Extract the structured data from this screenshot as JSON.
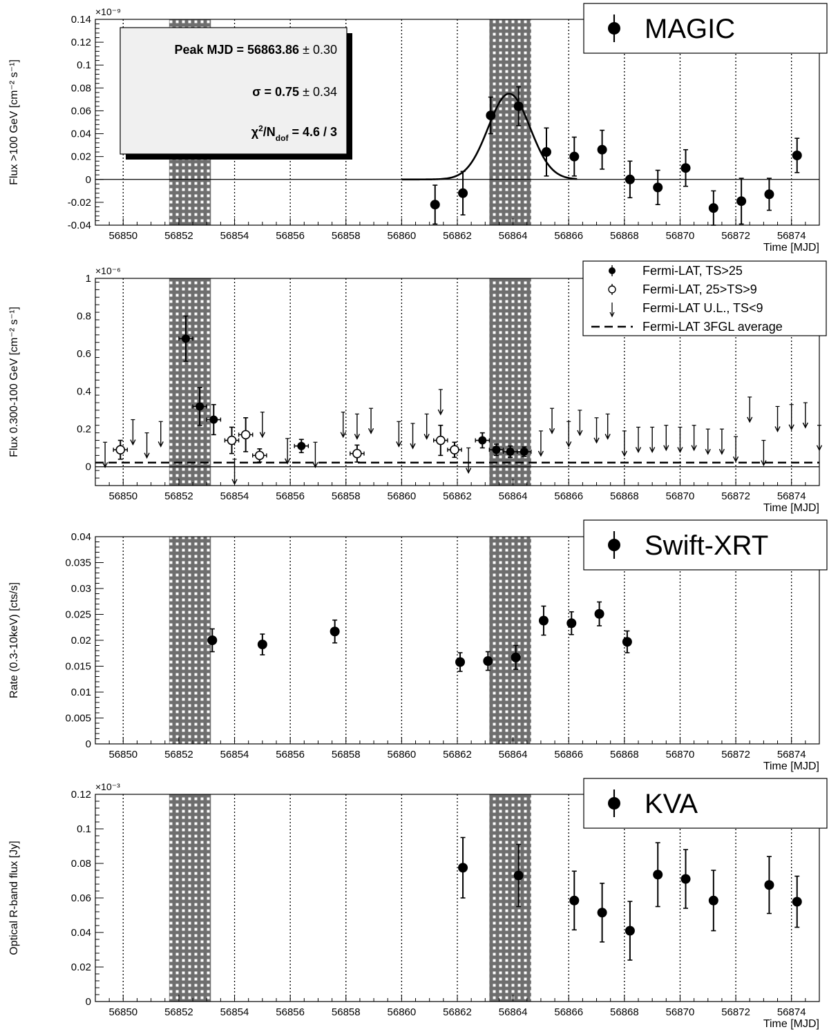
{
  "chart_data": [
    {
      "type": "scatter",
      "title": "MAGIC",
      "ylabel": "Flux  >100 GeV [cm⁻² s⁻¹]",
      "xlabel": "Time [MJD]",
      "exponent": "×10⁻⁹",
      "xlim": [
        56849.0,
        56875.0
      ],
      "ylim": [
        -0.04,
        0.14
      ],
      "xticks": [
        56850,
        56852,
        56854,
        56856,
        56858,
        56860,
        56862,
        56864,
        56866,
        56868,
        56870,
        56872,
        56874
      ],
      "xtick_labels": [
        "56850",
        "56852",
        "56854",
        "56856",
        "56858",
        "56860",
        "56862",
        "56864",
        "56866",
        "56868",
        "56870",
        "56872",
        "56874"
      ],
      "yticks": [
        -0.04,
        -0.02,
        0,
        0.02,
        0.04,
        0.06,
        0.08,
        0.1,
        0.12,
        0.14
      ],
      "ytick_labels": [
        "-0.04",
        "-0.02",
        "0",
        "0.02",
        "0.04",
        "0.06",
        "0.08",
        "0.1",
        "0.12",
        "0.14"
      ],
      "legend": [
        {
          "marker": "filled",
          "label": "MAGIC"
        }
      ],
      "fit": {
        "peak": 56863.86,
        "sigma": 0.75,
        "amplitude": 0.075,
        "range": [
          56860.0,
          56866.3
        ],
        "box_lines": [
          {
            "label": "Peak MJD = 56863.86",
            "err": " ± 0.30"
          },
          {
            "label": "σ = 0.75",
            "err": " ± 0.34"
          },
          {
            "chi": "χ",
            "chi_exp": "2",
            "slash": "/N",
            "dof": "dof",
            "value": " = 4.6 / 3"
          }
        ]
      },
      "series": [
        {
          "name": "MAGIC",
          "marker": "filled",
          "points": [
            {
              "x": 56861.2,
              "y": -0.022,
              "err": 0.017
            },
            {
              "x": 56862.2,
              "y": -0.012,
              "err": 0.019
            },
            {
              "x": 56863.2,
              "y": 0.056,
              "err": 0.016
            },
            {
              "x": 56864.2,
              "y": 0.064,
              "err": 0.017
            },
            {
              "x": 56865.2,
              "y": 0.024,
              "err": 0.021
            },
            {
              "x": 56866.2,
              "y": 0.02,
              "err": 0.017
            },
            {
              "x": 56867.2,
              "y": 0.026,
              "err": 0.017
            },
            {
              "x": 56868.2,
              "y": 0.0,
              "err": 0.016
            },
            {
              "x": 56869.2,
              "y": -0.007,
              "err": 0.015
            },
            {
              "x": 56870.2,
              "y": 0.01,
              "err": 0.016
            },
            {
              "x": 56871.2,
              "y": -0.025,
              "err": 0.015
            },
            {
              "x": 56872.2,
              "y": -0.019,
              "err": 0.02
            },
            {
              "x": 56873.2,
              "y": -0.013,
              "err": 0.014
            },
            {
              "x": 56874.2,
              "y": 0.021,
              "err": 0.015
            }
          ]
        }
      ]
    },
    {
      "type": "scatter",
      "ylabel": "Flux  0.300-100 GeV [cm⁻² s⁻¹]",
      "xlabel": "Time [MJD]",
      "exponent": "×10⁻⁶",
      "xlim": [
        56849.0,
        56875.0
      ],
      "ylim": [
        -0.1,
        1.0
      ],
      "xticks": [
        56850,
        56852,
        56854,
        56856,
        56858,
        56860,
        56862,
        56864,
        56866,
        56868,
        56870,
        56872,
        56874
      ],
      "xtick_labels": [
        "56850",
        "56852",
        "56854",
        "56856",
        "56858",
        "56860",
        "56862",
        "56864",
        "56866",
        "56868",
        "56870",
        "56872",
        "56874"
      ],
      "yticks": [
        0,
        0.2,
        0.4,
        0.6,
        0.8,
        1
      ],
      "ytick_labels": [
        "0",
        "0.2",
        "0.4",
        "0.6",
        "0.8",
        "1"
      ],
      "average": 0.022,
      "legend": [
        {
          "marker": "filled",
          "label": "Fermi-LAT, TS>25"
        },
        {
          "marker": "open",
          "label": "Fermi-LAT, 25>TS>9"
        },
        {
          "marker": "arrow",
          "label": "Fermi-LAT U.L., TS<9"
        },
        {
          "marker": "dashed",
          "label": "Fermi-LAT 3FGL average"
        }
      ],
      "series": [
        {
          "name": "Fermi-LAT, TS>25",
          "marker": "filled",
          "points": [
            {
              "x": 56852.25,
              "y": 0.68,
              "err": 0.12,
              "xerr": 0.25
            },
            {
              "x": 56852.75,
              "y": 0.32,
              "err": 0.1,
              "xerr": 0.25
            },
            {
              "x": 56853.25,
              "y": 0.25,
              "err": 0.08,
              "xerr": 0.25
            },
            {
              "x": 56856.4,
              "y": 0.11,
              "err": 0.035,
              "xerr": 0.25
            },
            {
              "x": 56862.9,
              "y": 0.14,
              "err": 0.04,
              "xerr": 0.25
            },
            {
              "x": 56863.4,
              "y": 0.09,
              "err": 0.03,
              "xerr": 0.25
            },
            {
              "x": 56863.9,
              "y": 0.08,
              "err": 0.03,
              "xerr": 0.25
            },
            {
              "x": 56864.4,
              "y": 0.08,
              "err": 0.025,
              "xerr": 0.25
            }
          ]
        },
        {
          "name": "Fermi-LAT, 25>TS>9",
          "marker": "open",
          "points": [
            {
              "x": 56849.9,
              "y": 0.09,
              "err": 0.05,
              "xerr": 0.25
            },
            {
              "x": 56853.9,
              "y": 0.14,
              "err": 0.07,
              "xerr": 0.25
            },
            {
              "x": 56854.4,
              "y": 0.17,
              "err": 0.09,
              "xerr": 0.25
            },
            {
              "x": 56854.9,
              "y": 0.06,
              "err": 0.035,
              "xerr": 0.25
            },
            {
              "x": 56858.4,
              "y": 0.07,
              "err": 0.045,
              "xerr": 0.25
            },
            {
              "x": 56861.4,
              "y": 0.14,
              "err": 0.08,
              "xerr": 0.25
            },
            {
              "x": 56861.9,
              "y": 0.09,
              "err": 0.04,
              "xerr": 0.25
            }
          ]
        },
        {
          "name": "Fermi-LAT U.L., TS<9",
          "marker": "arrow",
          "points": [
            {
              "x": 56849.35,
              "y": 0.13
            },
            {
              "x": 56850.35,
              "y": 0.25
            },
            {
              "x": 56850.85,
              "y": 0.18
            },
            {
              "x": 56851.35,
              "y": 0.24
            },
            {
              "x": 56854.0,
              "y": 0.04
            },
            {
              "x": 56855.0,
              "y": 0.29
            },
            {
              "x": 56855.9,
              "y": 0.15
            },
            {
              "x": 56856.9,
              "y": 0.13
            },
            {
              "x": 56857.9,
              "y": 0.29
            },
            {
              "x": 56858.4,
              "y": 0.28
            },
            {
              "x": 56858.9,
              "y": 0.31
            },
            {
              "x": 56859.9,
              "y": 0.24
            },
            {
              "x": 56860.4,
              "y": 0.23
            },
            {
              "x": 56860.9,
              "y": 0.28
            },
            {
              "x": 56861.4,
              "y": 0.41
            },
            {
              "x": 56862.4,
              "y": 0.1
            },
            {
              "x": 56865.0,
              "y": 0.19
            },
            {
              "x": 56865.4,
              "y": 0.31
            },
            {
              "x": 56866.0,
              "y": 0.24
            },
            {
              "x": 56866.4,
              "y": 0.3
            },
            {
              "x": 56867.0,
              "y": 0.26
            },
            {
              "x": 56867.4,
              "y": 0.28
            },
            {
              "x": 56868.0,
              "y": 0.19
            },
            {
              "x": 56868.5,
              "y": 0.21
            },
            {
              "x": 56869.0,
              "y": 0.21
            },
            {
              "x": 56869.5,
              "y": 0.22
            },
            {
              "x": 56870.0,
              "y": 0.21
            },
            {
              "x": 56870.5,
              "y": 0.22
            },
            {
              "x": 56871.0,
              "y": 0.2
            },
            {
              "x": 56871.5,
              "y": 0.2
            },
            {
              "x": 56872.0,
              "y": 0.16
            },
            {
              "x": 56872.5,
              "y": 0.37
            },
            {
              "x": 56873.0,
              "y": 0.14
            },
            {
              "x": 56873.5,
              "y": 0.32
            },
            {
              "x": 56874.0,
              "y": 0.33
            },
            {
              "x": 56874.5,
              "y": 0.34
            },
            {
              "x": 56875.0,
              "y": 0.22
            }
          ]
        }
      ]
    },
    {
      "type": "scatter",
      "title": "Swift-XRT",
      "ylabel": "Rate (0.3-10keV) [cts/s]",
      "xlabel": "Time [MJD]",
      "xlim": [
        56849.0,
        56875.0
      ],
      "ylim": [
        0,
        0.04
      ],
      "xticks": [
        56850,
        56852,
        56854,
        56856,
        56858,
        56860,
        56862,
        56864,
        56866,
        56868,
        56870,
        56872,
        56874
      ],
      "xtick_labels": [
        "56850",
        "56852",
        "56854",
        "56856",
        "56858",
        "56860",
        "56862",
        "56864",
        "56866",
        "56868",
        "56870",
        "56872",
        "56874"
      ],
      "yticks": [
        0,
        0.005,
        0.01,
        0.015,
        0.02,
        0.025,
        0.03,
        0.035,
        0.04
      ],
      "ytick_labels": [
        "0",
        "0.005",
        "0.01",
        "0.015",
        "0.02",
        "0.025",
        "0.03",
        "0.035",
        "0.04"
      ],
      "legend": [
        {
          "marker": "filled",
          "label": "Swift-XRT"
        }
      ],
      "series": [
        {
          "name": "Swift-XRT",
          "marker": "filled",
          "points": [
            {
              "x": 56853.2,
              "y": 0.02,
              "err": 0.0022
            },
            {
              "x": 56855.0,
              "y": 0.0192,
              "err": 0.002
            },
            {
              "x": 56857.6,
              "y": 0.0217,
              "err": 0.0022
            },
            {
              "x": 56862.1,
              "y": 0.0158,
              "err": 0.0018
            },
            {
              "x": 56863.1,
              "y": 0.016,
              "err": 0.0018
            },
            {
              "x": 56864.1,
              "y": 0.0167,
              "err": 0.0023
            },
            {
              "x": 56865.1,
              "y": 0.0238,
              "err": 0.0028
            },
            {
              "x": 56866.1,
              "y": 0.0233,
              "err": 0.0022
            },
            {
              "x": 56867.1,
              "y": 0.0251,
              "err": 0.0023
            },
            {
              "x": 56868.1,
              "y": 0.0197,
              "err": 0.0021
            }
          ]
        }
      ]
    },
    {
      "type": "scatter",
      "title": "KVA",
      "ylabel": "Optical R-band flux [Jy]",
      "xlabel": "Time [MJD]",
      "exponent": "×10⁻³",
      "xlim": [
        56849.0,
        56875.0
      ],
      "ylim": [
        0,
        0.12
      ],
      "xticks": [
        56850,
        56852,
        56854,
        56856,
        56858,
        56860,
        56862,
        56864,
        56866,
        56868,
        56870,
        56872,
        56874
      ],
      "xtick_labels": [
        "56850",
        "56852",
        "56854",
        "56856",
        "56858",
        "56860",
        "56862",
        "56864",
        "56866",
        "56868",
        "56870",
        "56872",
        "56874"
      ],
      "yticks": [
        0,
        0.02,
        0.04,
        0.06,
        0.08,
        0.1,
        0.12
      ],
      "ytick_labels": [
        "0",
        "0.02",
        "0.04",
        "0.06",
        "0.08",
        "0.1",
        "0.12"
      ],
      "legend": [
        {
          "marker": "filled",
          "label": "KVA"
        }
      ],
      "series": [
        {
          "name": "KVA",
          "marker": "filled",
          "points": [
            {
              "x": 56862.2,
              "y": 0.0775,
              "err": 0.0175
            },
            {
              "x": 56864.2,
              "y": 0.073,
              "err": 0.018
            },
            {
              "x": 56866.2,
              "y": 0.0585,
              "err": 0.017
            },
            {
              "x": 56867.2,
              "y": 0.0515,
              "err": 0.017
            },
            {
              "x": 56868.2,
              "y": 0.041,
              "err": 0.017
            },
            {
              "x": 56869.2,
              "y": 0.0735,
              "err": 0.0185
            },
            {
              "x": 56870.2,
              "y": 0.071,
              "err": 0.017
            },
            {
              "x": 56871.2,
              "y": 0.0585,
              "err": 0.0175
            },
            {
              "x": 56873.2,
              "y": 0.0675,
              "err": 0.0165
            },
            {
              "x": 56874.2,
              "y": 0.0578,
              "err": 0.0148
            }
          ]
        }
      ]
    }
  ],
  "shaded_intervals": [
    [
      56851.65,
      56853.15
    ],
    [
      56863.15,
      56864.65
    ]
  ],
  "dotted_lines_x": [
    56850,
    56854,
    56856,
    56858,
    56860,
    56862,
    56866,
    56868,
    56870,
    56872,
    56874
  ],
  "colors": {
    "band": "#6e6e6e",
    "band_dot": "#ffffff",
    "ink": "#000000"
  }
}
